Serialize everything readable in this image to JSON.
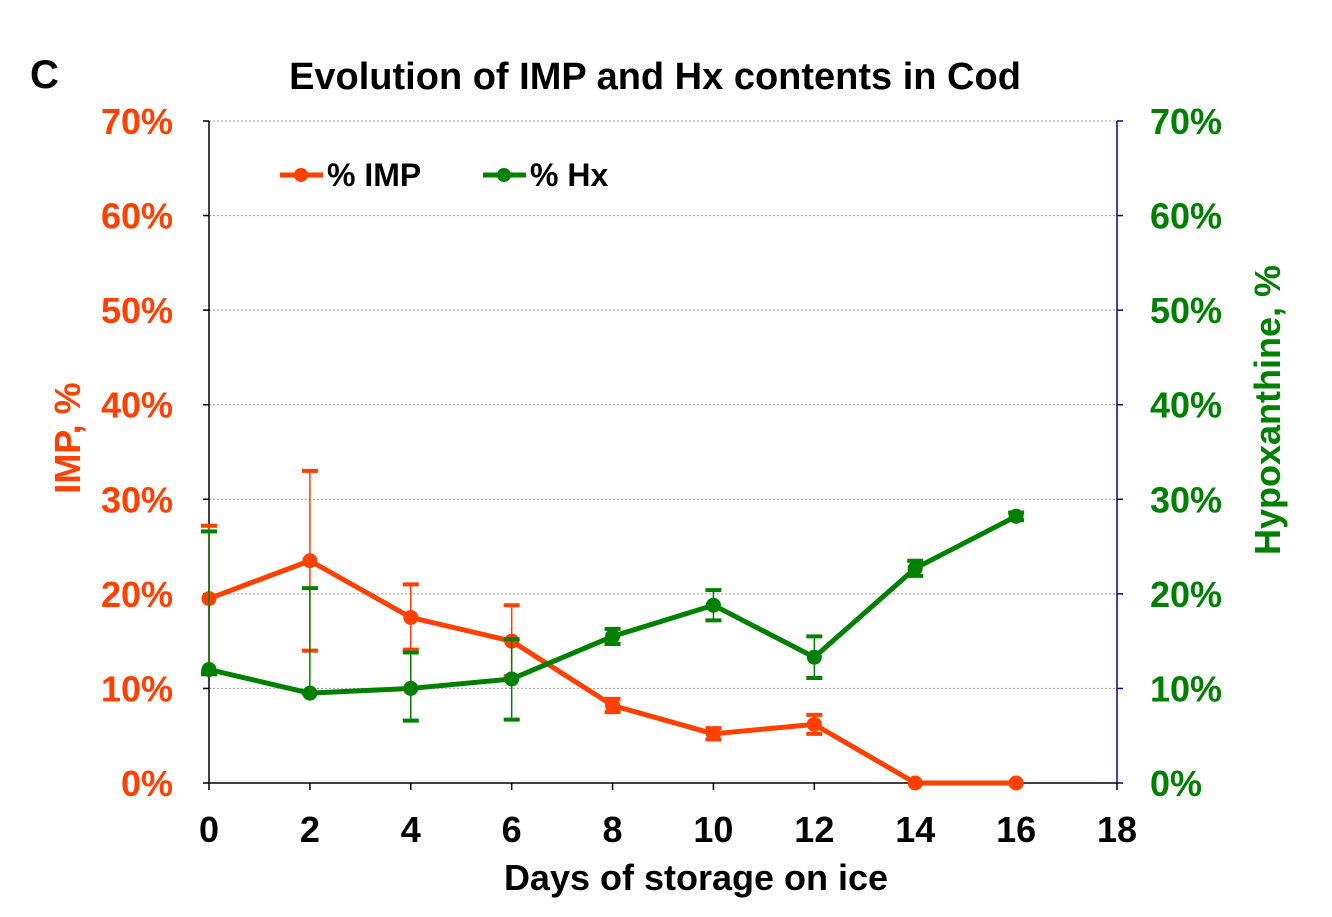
{
  "panel_label": "C",
  "chart_data": {
    "type": "line",
    "title": "Evolution of IMP and Hx contents in Cod",
    "xlabel": "Days of storage on ice",
    "ylabel_left": "IMP, %",
    "ylabel_right": "Hypoxanthine, %",
    "xlim": [
      0,
      18
    ],
    "x_ticks": [
      "0",
      "2",
      "4",
      "6",
      "8",
      "10",
      "12",
      "14",
      "16",
      "18"
    ],
    "ylim": [
      0,
      70
    ],
    "y_ticks_left": [
      "0%",
      "10%",
      "20%",
      "30%",
      "40%",
      "50%",
      "60%",
      "70%"
    ],
    "y_ticks_right": [
      "0%",
      "10%",
      "20%",
      "30%",
      "40%",
      "50%",
      "60%",
      "70%"
    ],
    "grid": "horizontal",
    "legend_position": "top-left",
    "series": [
      {
        "name": "% IMP",
        "axis": "left",
        "color": "#ff4000",
        "x": [
          0,
          2,
          4,
          6,
          8,
          10,
          12,
          14,
          16
        ],
        "y": [
          19.5,
          23.5,
          17.5,
          15.0,
          8.2,
          5.2,
          6.2,
          0.0,
          0.0
        ],
        "err_low": [
          11.8,
          14.0,
          14.1,
          11.3,
          7.5,
          4.6,
          5.2,
          0.0,
          0.0
        ],
        "err_high": [
          27.2,
          33.0,
          21.0,
          18.8,
          8.9,
          5.8,
          7.2,
          0.0,
          0.0
        ]
      },
      {
        "name": "% Hx",
        "axis": "right",
        "color": "#008000",
        "x": [
          0,
          2,
          4,
          6,
          8,
          10,
          12,
          14,
          16
        ],
        "y": [
          12.0,
          9.5,
          10.0,
          11.0,
          15.5,
          18.8,
          13.3,
          22.7,
          28.2
        ],
        "err_low": [
          11.5,
          9.5,
          6.6,
          6.7,
          14.7,
          17.2,
          11.1,
          21.9,
          27.8
        ],
        "err_high": [
          26.6,
          20.6,
          13.8,
          15.2,
          16.3,
          20.4,
          15.5,
          23.5,
          28.6
        ]
      }
    ]
  }
}
